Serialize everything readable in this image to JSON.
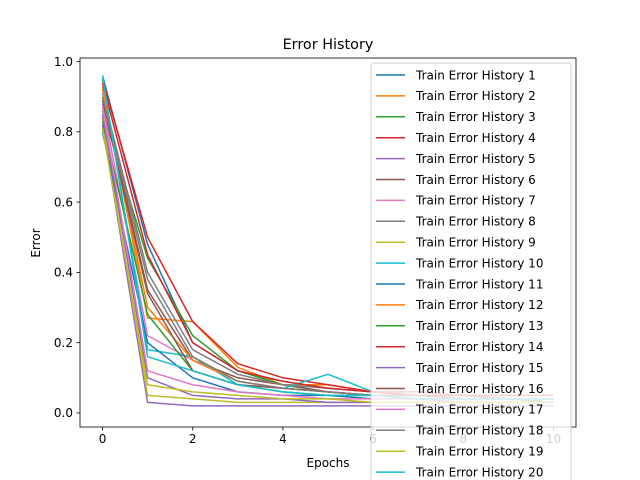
{
  "chart_data": {
    "type": "line",
    "title": "Error History",
    "xlabel": "Epochs",
    "ylabel": "Error",
    "xlim": [
      -0.5,
      10.5
    ],
    "ylim": [
      -0.04,
      1.01
    ],
    "x_ticks": [
      0,
      2,
      4,
      6,
      8,
      10
    ],
    "y_ticks": [
      0.0,
      0.2,
      0.4,
      0.6,
      0.8,
      1.0
    ],
    "x_tick_labels": [
      "0",
      "2",
      "4",
      "6",
      "8",
      "10"
    ],
    "y_tick_labels": [
      "0.0",
      "0.2",
      "0.4",
      "0.6",
      "0.8",
      "1.0"
    ],
    "grid": false,
    "legend_position": "upper-right",
    "x": [
      0,
      1,
      2,
      3,
      4,
      5,
      6,
      7,
      8,
      9,
      10
    ],
    "series": [
      {
        "name": "Train Error History 1",
        "color": "#1f77b4",
        "values": [
          0.96,
          0.48,
          0.2,
          0.12,
          0.09,
          0.07,
          0.06,
          0.05,
          0.05,
          0.04,
          0.04
        ]
      },
      {
        "name": "Train Error History 2",
        "color": "#ff7f0e",
        "values": [
          0.93,
          0.27,
          0.26,
          0.13,
          0.08,
          0.08,
          0.06,
          0.05,
          0.05,
          0.04,
          0.04
        ]
      },
      {
        "name": "Train Error History 3",
        "color": "#2ca02c",
        "values": [
          0.86,
          0.44,
          0.22,
          0.12,
          0.08,
          0.06,
          0.05,
          0.05,
          0.04,
          0.04,
          0.04
        ]
      },
      {
        "name": "Train Error History 4",
        "color": "#d62728",
        "values": [
          0.95,
          0.5,
          0.26,
          0.14,
          0.1,
          0.08,
          0.06,
          0.06,
          0.05,
          0.05,
          0.05
        ]
      },
      {
        "name": "Train Error History 5",
        "color": "#9467bd",
        "values": [
          0.82,
          0.03,
          0.02,
          0.02,
          0.02,
          0.02,
          0.02,
          0.02,
          0.02,
          0.02,
          0.02
        ]
      },
      {
        "name": "Train Error History 6",
        "color": "#8c564b",
        "values": [
          0.9,
          0.35,
          0.15,
          0.1,
          0.08,
          0.06,
          0.05,
          0.05,
          0.04,
          0.04,
          0.04
        ]
      },
      {
        "name": "Train Error History 7",
        "color": "#e377c2",
        "values": [
          0.88,
          0.22,
          0.15,
          0.09,
          0.07,
          0.06,
          0.05,
          0.04,
          0.04,
          0.04,
          0.03
        ]
      },
      {
        "name": "Train Error History 8",
        "color": "#7f7f7f",
        "values": [
          0.91,
          0.4,
          0.18,
          0.11,
          0.08,
          0.07,
          0.06,
          0.05,
          0.04,
          0.04,
          0.04
        ]
      },
      {
        "name": "Train Error History 9",
        "color": "#bcbd22",
        "values": [
          0.84,
          0.05,
          0.04,
          0.03,
          0.03,
          0.03,
          0.03,
          0.03,
          0.03,
          0.03,
          0.03
        ]
      },
      {
        "name": "Train Error History 10",
        "color": "#17becf",
        "values": [
          0.95,
          0.18,
          0.16,
          0.08,
          0.07,
          0.11,
          0.06,
          0.05,
          0.05,
          0.04,
          0.04
        ]
      },
      {
        "name": "Train Error History 11",
        "color": "#1f77b4",
        "values": [
          0.8,
          0.2,
          0.1,
          0.06,
          0.05,
          0.05,
          0.04,
          0.04,
          0.03,
          0.03,
          0.03
        ]
      },
      {
        "name": "Train Error History 12",
        "color": "#ff7f0e",
        "values": [
          0.92,
          0.3,
          0.15,
          0.09,
          0.07,
          0.06,
          0.05,
          0.04,
          0.04,
          0.04,
          0.03
        ]
      },
      {
        "name": "Train Error History 13",
        "color": "#2ca02c",
        "values": [
          0.83,
          0.28,
          0.12,
          0.08,
          0.06,
          0.05,
          0.05,
          0.04,
          0.04,
          0.04,
          0.03
        ]
      },
      {
        "name": "Train Error History 14",
        "color": "#d62728",
        "values": [
          0.94,
          0.45,
          0.2,
          0.12,
          0.09,
          0.07,
          0.06,
          0.05,
          0.05,
          0.04,
          0.04
        ]
      },
      {
        "name": "Train Error History 15",
        "color": "#9467bd",
        "values": [
          0.85,
          0.1,
          0.05,
          0.04,
          0.04,
          0.03,
          0.03,
          0.03,
          0.03,
          0.03,
          0.03
        ]
      },
      {
        "name": "Train Error History 16",
        "color": "#8c564b",
        "values": [
          0.89,
          0.34,
          0.12,
          0.08,
          0.07,
          0.06,
          0.05,
          0.05,
          0.04,
          0.04,
          0.04
        ]
      },
      {
        "name": "Train Error History 17",
        "color": "#e377c2",
        "values": [
          0.87,
          0.12,
          0.08,
          0.06,
          0.05,
          0.04,
          0.04,
          0.04,
          0.03,
          0.03,
          0.03
        ]
      },
      {
        "name": "Train Error History 18",
        "color": "#7f7f7f",
        "values": [
          0.9,
          0.38,
          0.16,
          0.09,
          0.07,
          0.06,
          0.05,
          0.04,
          0.04,
          0.04,
          0.04
        ]
      },
      {
        "name": "Train Error History 19",
        "color": "#bcbd22",
        "values": [
          0.81,
          0.08,
          0.06,
          0.05,
          0.04,
          0.04,
          0.03,
          0.03,
          0.03,
          0.03,
          0.03
        ]
      },
      {
        "name": "Train Error History 20",
        "color": "#17becf",
        "values": [
          0.96,
          0.16,
          0.12,
          0.08,
          0.06,
          0.05,
          0.05,
          0.04,
          0.04,
          0.04,
          0.04
        ]
      }
    ]
  }
}
